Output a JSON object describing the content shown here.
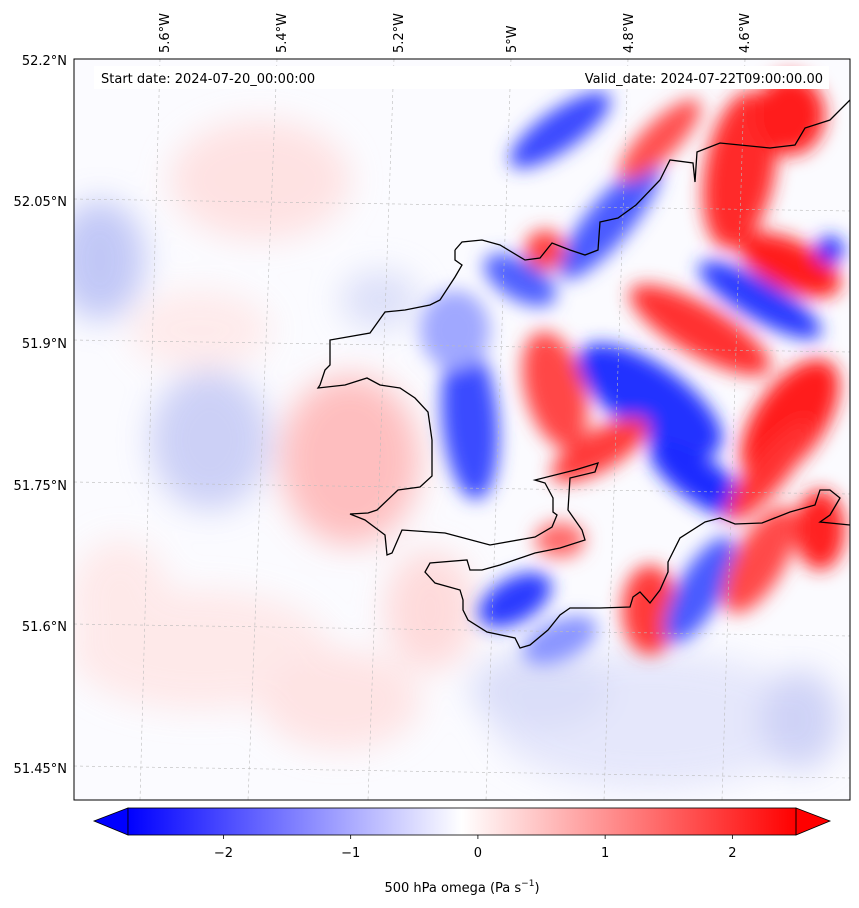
{
  "map": {
    "start_date": "Start date: 2024-07-20_00:00:00",
    "valid_date": "Valid_date: 2024-07-22T09:00:00.00",
    "lon_labels": [
      "5.6°W",
      "5.4°W",
      "5.2°W",
      "5°W",
      "4.8°W",
      "4.6°W"
    ],
    "lat_labels": [
      "52.2°N",
      "52.05°N",
      "51.9°N",
      "51.75°N",
      "51.6°N",
      "51.45°N"
    ],
    "extent": {
      "lon": [
        -5.75,
        -4.46
      ],
      "lat": [
        51.43,
        52.2
      ]
    }
  },
  "colorbar": {
    "label": "500 hPa omega (Pa s",
    "label_sup": "−1",
    "label_end": ")",
    "ticks": [
      "−2",
      "−1",
      "0",
      "1",
      "2"
    ],
    "tick_values": [
      -2,
      -1,
      0,
      1,
      2
    ],
    "range": [
      -2.75,
      2.5
    ],
    "extend": "both",
    "cmap": "bwr",
    "neg_color": "#0000ff",
    "pos_color": "#ff0000"
  }
}
